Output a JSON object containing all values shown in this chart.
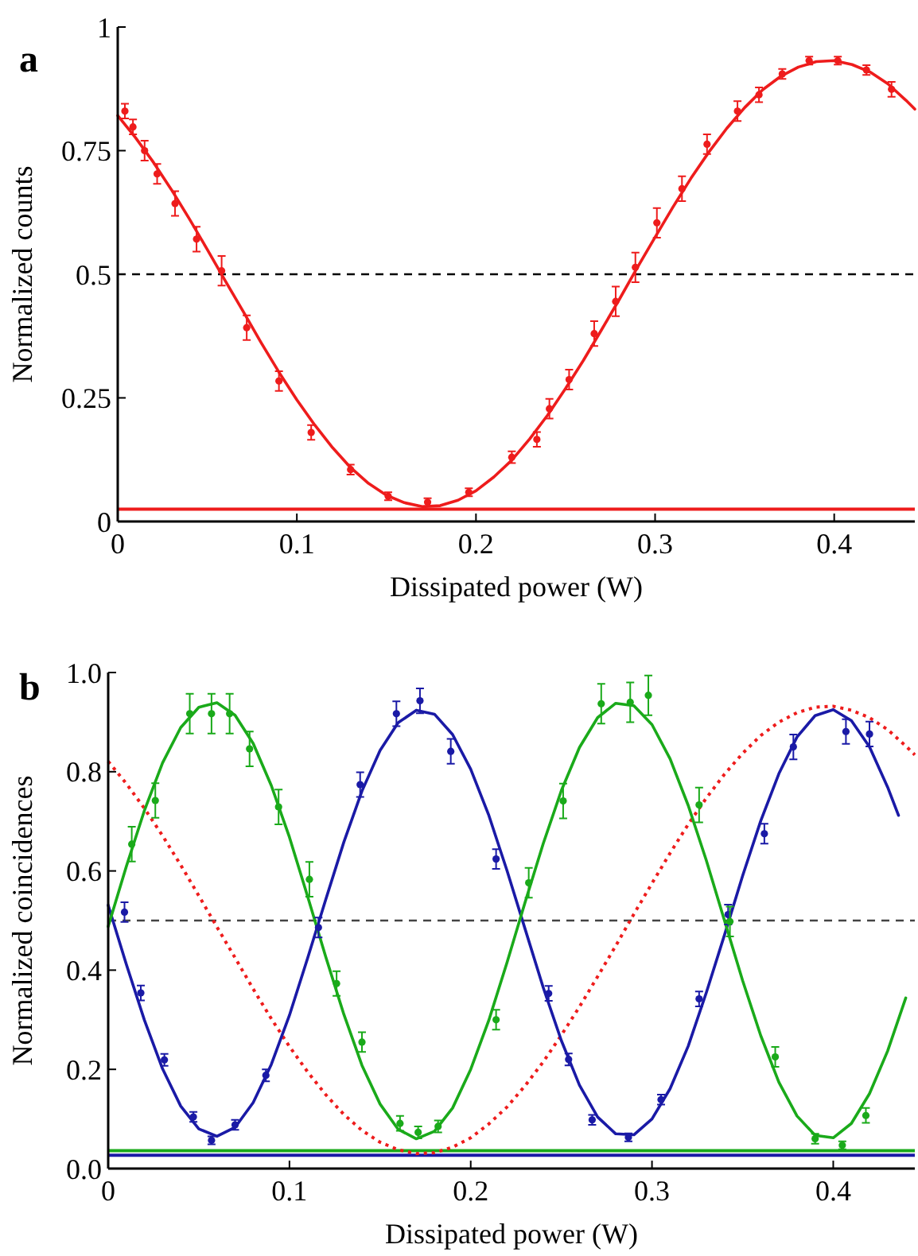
{
  "chart_data": [
    {
      "type": "scatter",
      "title": "a",
      "xlabel": "Dissipated power (W)",
      "ylabel": "Normalized counts",
      "xlim": [
        0,
        0.445
      ],
      "ylim": [
        0,
        1
      ],
      "xticks": [
        0,
        0.1,
        0.2,
        0.3,
        0.4
      ],
      "yticks": [
        0,
        0.25,
        0.5,
        0.75,
        1
      ],
      "series": [
        {
          "color": "#ee1c1c",
          "marker": "circle",
          "x": [
            0.004,
            0.0085,
            0.015,
            0.022,
            0.032,
            0.044,
            0.058,
            0.072,
            0.09,
            0.108,
            0.13,
            0.151,
            0.173,
            0.196,
            0.22,
            0.234,
            0.241,
            0.252,
            0.266,
            0.278,
            0.289,
            0.301,
            0.315,
            0.329,
            0.346,
            0.358,
            0.371,
            0.386,
            0.402,
            0.418,
            0.432
          ],
          "values": [
            0.83,
            0.798,
            0.75,
            0.703,
            0.643,
            0.571,
            0.507,
            0.392,
            0.284,
            0.18,
            0.105,
            0.051,
            0.039,
            0.059,
            0.13,
            0.166,
            0.228,
            0.287,
            0.38,
            0.445,
            0.514,
            0.604,
            0.673,
            0.763,
            0.83,
            0.863,
            0.905,
            0.932,
            0.932,
            0.913,
            0.874
          ],
          "errors": [
            0.015,
            0.015,
            0.02,
            0.02,
            0.025,
            0.025,
            0.03,
            0.025,
            0.02,
            0.015,
            0.01,
            0.008,
            0.008,
            0.008,
            0.012,
            0.015,
            0.02,
            0.02,
            0.025,
            0.03,
            0.03,
            0.03,
            0.025,
            0.02,
            0.02,
            0.015,
            0.01,
            0.008,
            0.008,
            0.01,
            0.015
          ]
        },
        {
          "type": "line",
          "color": "#ee1c1c",
          "line_style": "solid",
          "x": [
            0,
            0.01,
            0.02,
            0.03,
            0.04,
            0.05,
            0.06,
            0.07,
            0.08,
            0.09,
            0.1,
            0.11,
            0.12,
            0.13,
            0.14,
            0.15,
            0.16,
            0.17,
            0.18,
            0.19,
            0.2,
            0.21,
            0.22,
            0.23,
            0.24,
            0.25,
            0.26,
            0.27,
            0.28,
            0.29,
            0.3,
            0.31,
            0.32,
            0.33,
            0.34,
            0.35,
            0.36,
            0.37,
            0.38,
            0.39,
            0.4,
            0.41,
            0.42,
            0.43,
            0.44,
            0.445
          ],
          "values": [
            0.821,
            0.776,
            0.726,
            0.671,
            0.612,
            0.55,
            0.487,
            0.425,
            0.362,
            0.302,
            0.246,
            0.195,
            0.149,
            0.109,
            0.077,
            0.053,
            0.038,
            0.03,
            0.032,
            0.043,
            0.062,
            0.09,
            0.124,
            0.167,
            0.215,
            0.269,
            0.326,
            0.387,
            0.449,
            0.513,
            0.575,
            0.636,
            0.694,
            0.747,
            0.795,
            0.837,
            0.873,
            0.9,
            0.919,
            0.93,
            0.932,
            0.924,
            0.909,
            0.885,
            0.852,
            0.834
          ]
        }
      ],
      "ref_lines": [
        {
          "axis": "y",
          "value": 0.5,
          "color": "#000000",
          "line_style": "dashed"
        },
        {
          "axis": "y",
          "value": 0.025,
          "color": "#ee1c1c",
          "line_style": "solid"
        }
      ]
    },
    {
      "type": "scatter",
      "title": "b",
      "xlabel": "Dissipated power (W)",
      "ylabel": "Normalized coincidences",
      "xlim": [
        0,
        0.445
      ],
      "ylim": [
        0,
        1
      ],
      "xticks": [
        0,
        0.1,
        0.2,
        0.3,
        0.4
      ],
      "yticks": [
        {
          "value": 0,
          "label": "0.0"
        },
        {
          "value": 0.2,
          "label": "0.2"
        },
        {
          "value": 0.4,
          "label": "0.4"
        },
        {
          "value": 0.6,
          "label": "0.6"
        },
        {
          "value": 0.8,
          "label": "0.8"
        },
        {
          "value": 1,
          "label": "1.0"
        }
      ],
      "series": [
        {
          "type": "line",
          "color": "#ee1c1c",
          "line_style": "dotted",
          "x": [
            0,
            0.01,
            0.02,
            0.03,
            0.04,
            0.05,
            0.06,
            0.07,
            0.08,
            0.09,
            0.1,
            0.11,
            0.12,
            0.13,
            0.14,
            0.15,
            0.16,
            0.17,
            0.18,
            0.19,
            0.2,
            0.21,
            0.22,
            0.23,
            0.24,
            0.25,
            0.26,
            0.27,
            0.28,
            0.29,
            0.3,
            0.31,
            0.32,
            0.33,
            0.34,
            0.35,
            0.36,
            0.37,
            0.38,
            0.39,
            0.4,
            0.41,
            0.42,
            0.43,
            0.44,
            0.445
          ],
          "values": [
            0.821,
            0.776,
            0.726,
            0.671,
            0.612,
            0.55,
            0.487,
            0.425,
            0.362,
            0.302,
            0.246,
            0.195,
            0.149,
            0.109,
            0.077,
            0.053,
            0.038,
            0.03,
            0.032,
            0.043,
            0.062,
            0.09,
            0.124,
            0.167,
            0.215,
            0.269,
            0.326,
            0.387,
            0.449,
            0.513,
            0.575,
            0.636,
            0.694,
            0.747,
            0.795,
            0.837,
            0.873,
            0.9,
            0.919,
            0.93,
            0.932,
            0.924,
            0.909,
            0.885,
            0.852,
            0.834
          ]
        },
        {
          "color": "#1a1aa6",
          "marker": "circle",
          "x": [
            0.009,
            0.018,
            0.031,
            0.047,
            0.057,
            0.07,
            0.087,
            0.116,
            0.139,
            0.159,
            0.172,
            0.189,
            0.214,
            0.243,
            0.254,
            0.267,
            0.287,
            0.305,
            0.326,
            0.342,
            0.362,
            0.378,
            0.407,
            0.42
          ],
          "values": [
            0.517,
            0.354,
            0.219,
            0.104,
            0.057,
            0.088,
            0.188,
            0.486,
            0.774,
            0.917,
            0.943,
            0.841,
            0.624,
            0.353,
            0.22,
            0.098,
            0.063,
            0.139,
            0.342,
            0.512,
            0.675,
            0.85,
            0.881,
            0.876
          ],
          "errors": [
            0.02,
            0.015,
            0.012,
            0.01,
            0.008,
            0.01,
            0.012,
            0.02,
            0.025,
            0.025,
            0.025,
            0.025,
            0.02,
            0.015,
            0.012,
            0.01,
            0.008,
            0.01,
            0.015,
            0.02,
            0.02,
            0.025,
            0.025,
            0.025
          ]
        },
        {
          "type": "line",
          "color": "#1a1aa6",
          "line_style": "solid",
          "x": [
            0,
            0.01,
            0.02,
            0.03,
            0.04,
            0.05,
            0.06,
            0.07,
            0.08,
            0.09,
            0.1,
            0.11,
            0.12,
            0.13,
            0.14,
            0.15,
            0.16,
            0.17,
            0.18,
            0.19,
            0.2,
            0.21,
            0.22,
            0.23,
            0.24,
            0.25,
            0.26,
            0.27,
            0.28,
            0.29,
            0.3,
            0.31,
            0.32,
            0.33,
            0.34,
            0.35,
            0.36,
            0.37,
            0.38,
            0.39,
            0.4,
            0.41,
            0.42,
            0.43,
            0.436
          ],
          "values": [
            0.531,
            0.412,
            0.299,
            0.201,
            0.126,
            0.08,
            0.065,
            0.083,
            0.133,
            0.21,
            0.309,
            0.424,
            0.542,
            0.658,
            0.761,
            0.843,
            0.899,
            0.924,
            0.916,
            0.875,
            0.805,
            0.712,
            0.601,
            0.483,
            0.365,
            0.258,
            0.168,
            0.104,
            0.07,
            0.068,
            0.1,
            0.161,
            0.247,
            0.355,
            0.471,
            0.59,
            0.701,
            0.796,
            0.87,
            0.913,
            0.925,
            0.903,
            0.85,
            0.769,
            0.712
          ]
        },
        {
          "color": "#1aaa1a",
          "marker": "circle",
          "x": [
            0.013,
            0.026,
            0.045,
            0.057,
            0.067,
            0.078,
            0.094,
            0.111,
            0.126,
            0.14,
            0.161,
            0.171,
            0.182,
            0.214,
            0.232,
            0.251,
            0.272,
            0.288,
            0.298,
            0.326,
            0.343,
            0.368,
            0.39,
            0.405,
            0.418
          ],
          "values": [
            0.654,
            0.742,
            0.917,
            0.917,
            0.917,
            0.846,
            0.729,
            0.583,
            0.373,
            0.255,
            0.091,
            0.073,
            0.085,
            0.3,
            0.576,
            0.741,
            0.937,
            0.94,
            0.954,
            0.733,
            0.498,
            0.225,
            0.06,
            0.047,
            0.107
          ],
          "errors": [
            0.035,
            0.035,
            0.04,
            0.04,
            0.04,
            0.035,
            0.035,
            0.035,
            0.025,
            0.02,
            0.015,
            0.012,
            0.012,
            0.02,
            0.03,
            0.035,
            0.04,
            0.04,
            0.04,
            0.035,
            0.03,
            0.02,
            0.01,
            0.008,
            0.015
          ]
        },
        {
          "type": "line",
          "color": "#1aaa1a",
          "line_style": "solid",
          "x": [
            0,
            0.01,
            0.02,
            0.03,
            0.04,
            0.05,
            0.06,
            0.07,
            0.08,
            0.09,
            0.1,
            0.11,
            0.12,
            0.13,
            0.14,
            0.15,
            0.16,
            0.17,
            0.18,
            0.19,
            0.2,
            0.21,
            0.22,
            0.23,
            0.24,
            0.25,
            0.26,
            0.27,
            0.28,
            0.29,
            0.3,
            0.31,
            0.32,
            0.33,
            0.34,
            0.35,
            0.36,
            0.37,
            0.38,
            0.39,
            0.4,
            0.41,
            0.42,
            0.43,
            0.44
          ],
          "values": [
            0.488,
            0.609,
            0.722,
            0.818,
            0.889,
            0.93,
            0.939,
            0.914,
            0.857,
            0.772,
            0.668,
            0.549,
            0.427,
            0.311,
            0.208,
            0.13,
            0.079,
            0.06,
            0.075,
            0.122,
            0.2,
            0.299,
            0.415,
            0.537,
            0.655,
            0.762,
            0.849,
            0.909,
            0.938,
            0.933,
            0.895,
            0.826,
            0.732,
            0.621,
            0.5,
            0.379,
            0.268,
            0.174,
            0.106,
            0.067,
            0.062,
            0.091,
            0.151,
            0.237,
            0.344
          ]
        }
      ],
      "ref_lines": [
        {
          "axis": "y",
          "value": 0.5,
          "color": "#444444",
          "line_style": "dashed"
        },
        {
          "axis": "y",
          "value": 0.036,
          "color": "#1aaa1a",
          "line_style": "solid"
        },
        {
          "axis": "y",
          "value": 0.027,
          "color": "#1a1aa6",
          "line_style": "solid"
        }
      ]
    }
  ]
}
